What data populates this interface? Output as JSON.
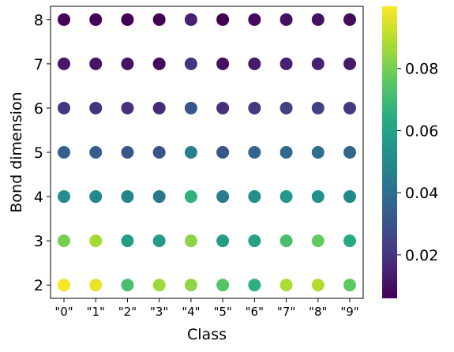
{
  "chart_data": {
    "type": "scatter",
    "xlabel": "Class",
    "ylabel": "Bond dimension",
    "categories": [
      "\"0\"",
      "\"1\"",
      "\"2\"",
      "\"3\"",
      "\"4\"",
      "\"5\"",
      "\"6\"",
      "\"7\"",
      "\"8\"",
      "\"9\""
    ],
    "y": [
      2,
      3,
      4,
      5,
      6,
      7,
      8
    ],
    "ylim": [
      1.7,
      8.3
    ],
    "values": [
      [
        0.099,
        0.097,
        0.072,
        0.086,
        0.084,
        0.074,
        0.066,
        0.088,
        0.089,
        0.076
      ],
      [
        0.08,
        0.087,
        0.058,
        0.057,
        0.083,
        0.058,
        0.06,
        0.072,
        0.077,
        0.063
      ],
      [
        0.051,
        0.05,
        0.048,
        0.043,
        0.066,
        0.045,
        0.052,
        0.055,
        0.053,
        0.05
      ],
      [
        0.035,
        0.034,
        0.031,
        0.03,
        0.046,
        0.031,
        0.036,
        0.038,
        0.04,
        0.037
      ],
      [
        0.021,
        0.02,
        0.019,
        0.017,
        0.031,
        0.019,
        0.022,
        0.024,
        0.024,
        0.022
      ],
      [
        0.012,
        0.011,
        0.011,
        0.008,
        0.02,
        0.01,
        0.013,
        0.015,
        0.015,
        0.013
      ],
      [
        0.007,
        0.006,
        0.006,
        0.005,
        0.014,
        0.006,
        0.008,
        0.01,
        0.01,
        0.009
      ]
    ],
    "colorbar": {
      "range": [
        0.006,
        0.1
      ],
      "ticks": [
        0.02,
        0.04,
        0.06,
        0.08
      ],
      "tick_labels": [
        "0.02",
        "0.04",
        "0.06",
        "0.08"
      ],
      "colormap": "viridis"
    },
    "yticks": [
      "2",
      "3",
      "4",
      "5",
      "6",
      "7",
      "8"
    ],
    "grid": false,
    "legend": "none"
  }
}
